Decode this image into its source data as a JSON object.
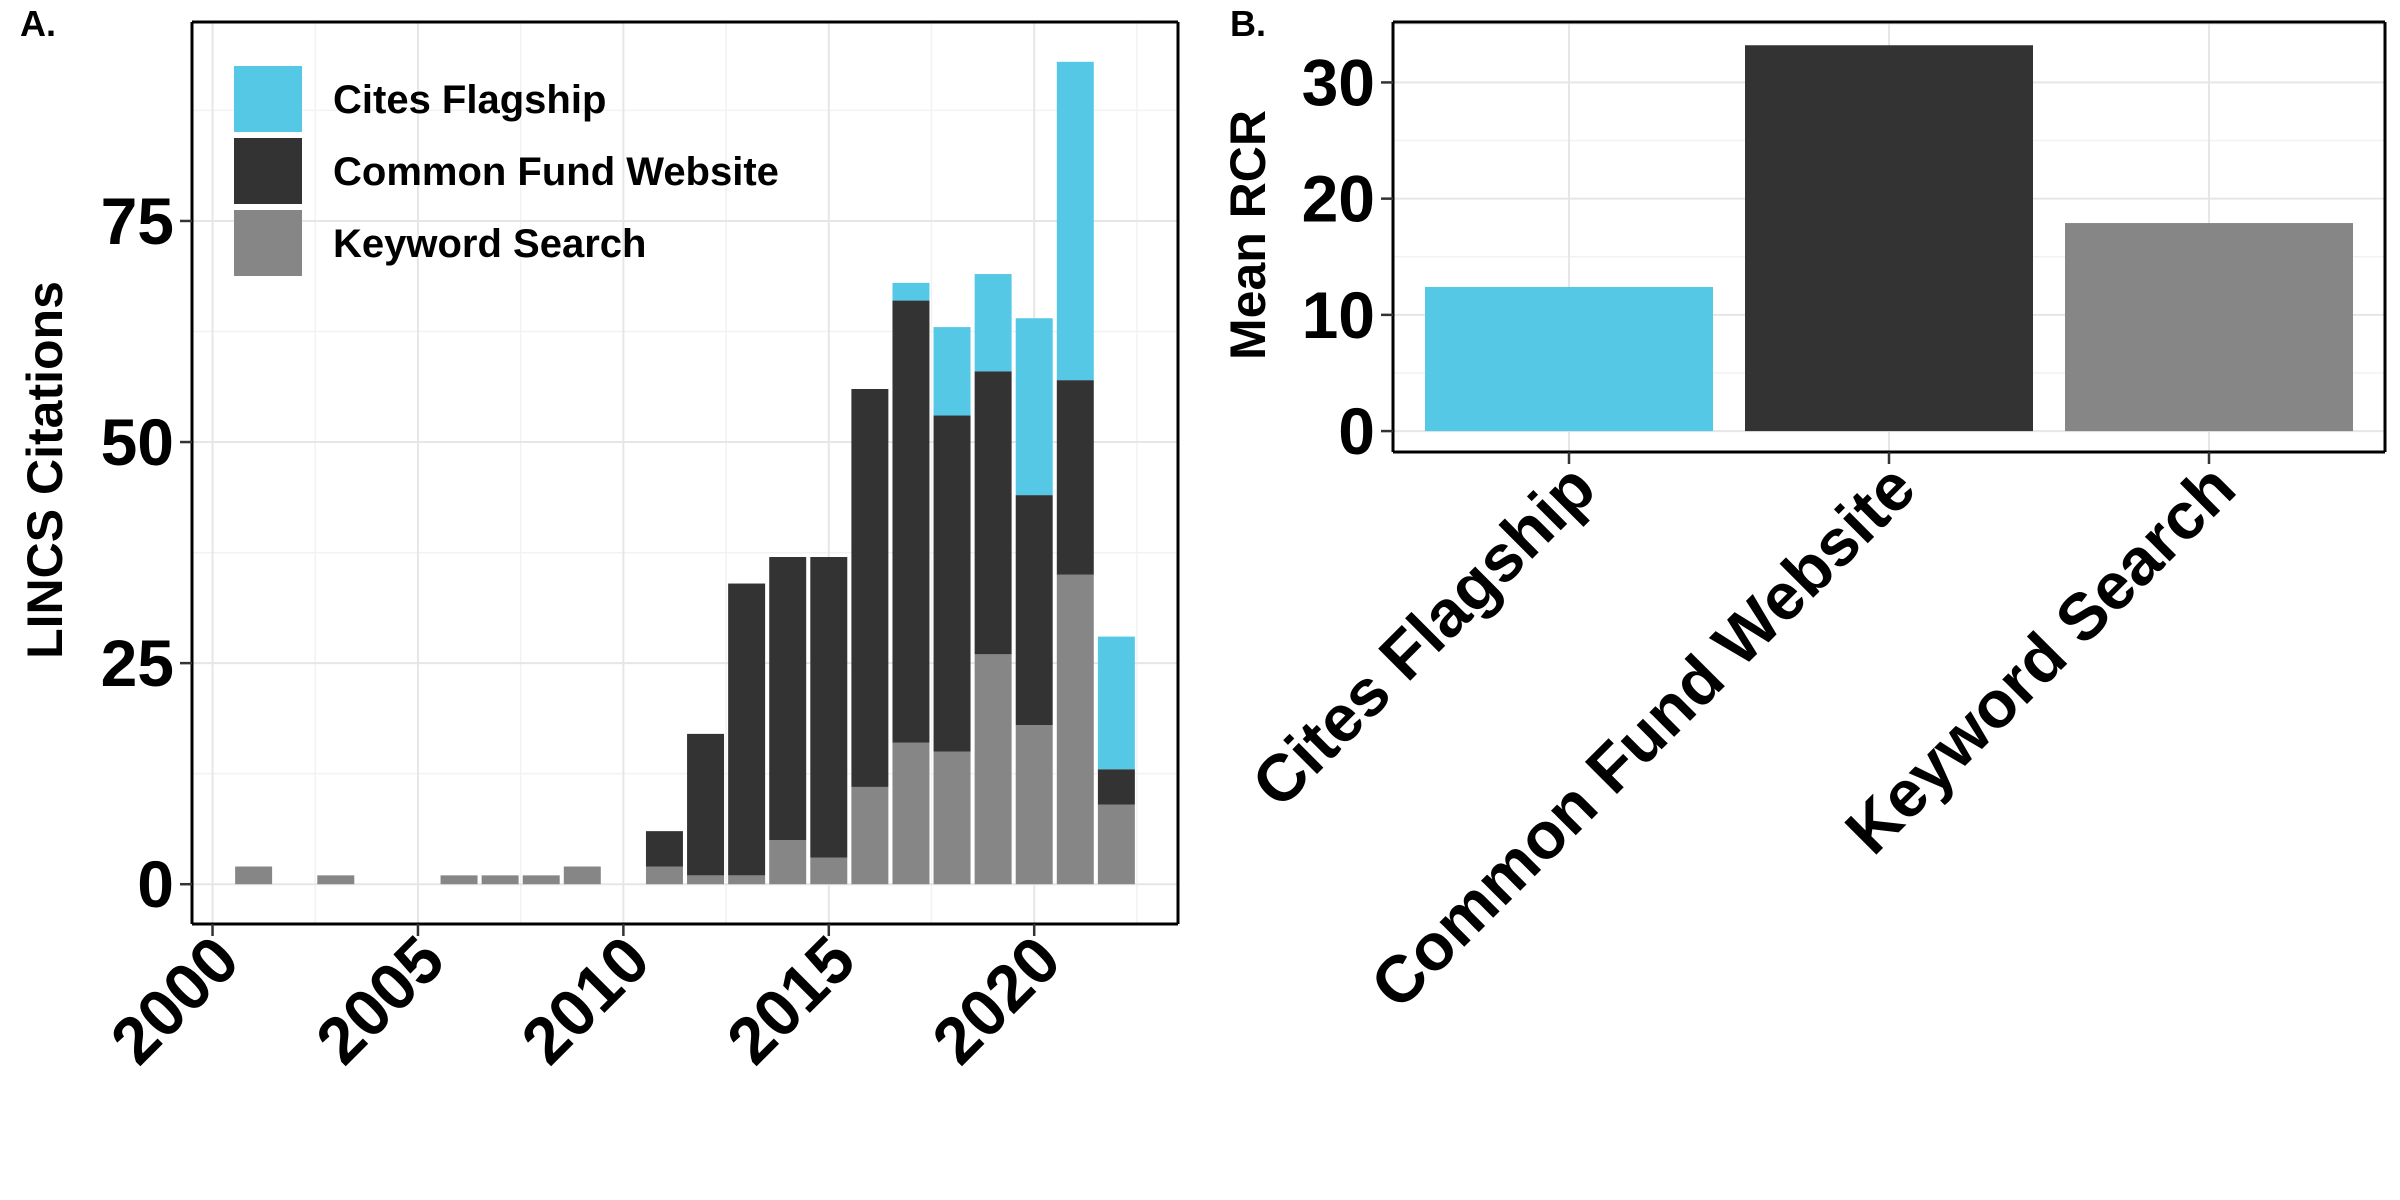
{
  "chart_data": [
    {
      "panel_label": "A.",
      "type": "bar",
      "stacked": true,
      "xlabel": "",
      "ylabel": "LINCS Citations",
      "xlim": [
        1999.5,
        2023.5
      ],
      "ylim": [
        -4.5,
        97.5
      ],
      "x_ticks": [
        2000,
        2005,
        2010,
        2015,
        2020
      ],
      "y_ticks": [
        0,
        25,
        50,
        75
      ],
      "grid": true,
      "legend_position": "top-left",
      "x": [
        2001,
        2003,
        2006,
        2007,
        2008,
        2009,
        2011,
        2012,
        2013,
        2014,
        2015,
        2016,
        2017,
        2018,
        2019,
        2020,
        2021,
        2022
      ],
      "series": [
        {
          "name": "Keyword Search",
          "color": "#868686",
          "values": [
            2,
            1,
            1,
            1,
            1,
            2,
            2,
            1,
            1,
            5,
            3,
            11,
            16,
            15,
            26,
            18,
            35,
            9
          ]
        },
        {
          "name": "Common Fund Website",
          "color": "#333333",
          "values": [
            0,
            0,
            0,
            0,
            0,
            0,
            4,
            16,
            33,
            32,
            34,
            45,
            50,
            38,
            32,
            26,
            22,
            4
          ]
        },
        {
          "name": "Cites Flagship",
          "color": "#55c8e6",
          "values": [
            0,
            0,
            0,
            0,
            0,
            0,
            0,
            0,
            0,
            0,
            0,
            0,
            2,
            10,
            11,
            20,
            36,
            15
          ]
        }
      ],
      "legend_order": [
        "Cites Flagship",
        "Common Fund Website",
        "Keyword Search"
      ]
    },
    {
      "panel_label": "B.",
      "type": "bar",
      "xlabel": "",
      "ylabel": "Mean RCR",
      "ylim": [
        -1.8,
        35.2
      ],
      "y_ticks": [
        0,
        10,
        20,
        30
      ],
      "grid": true,
      "categories": [
        "Cites Flagship",
        "Common Fund Website",
        "Keyword Search"
      ],
      "values": [
        12.4,
        33.2,
        17.9
      ],
      "colors": [
        "#55c8e6",
        "#333333",
        "#868686"
      ]
    }
  ]
}
